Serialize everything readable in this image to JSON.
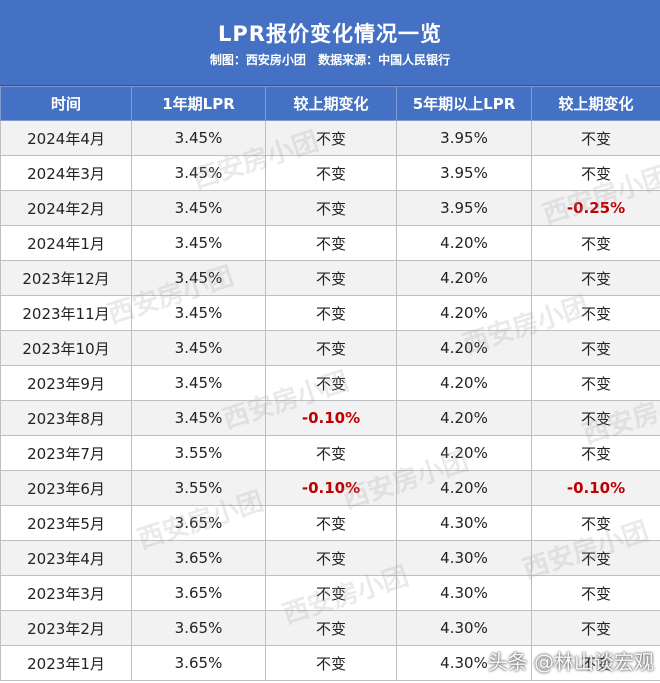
{
  "header": {
    "title": "LPR报价变化情况一览",
    "subtitle_left": "制图：西安房小团",
    "subtitle_right": "数据来源：中国人民银行"
  },
  "table": {
    "columns": [
      "时间",
      "1年期LPR",
      "较上期变化",
      "5年期以上LPR",
      "较上期变化"
    ],
    "rows": [
      [
        "2024年4月",
        "3.45%",
        "不变",
        "3.95%",
        "不变"
      ],
      [
        "2024年3月",
        "3.45%",
        "不变",
        "3.95%",
        "不变"
      ],
      [
        "2024年2月",
        "3.45%",
        "不变",
        "3.95%",
        "-0.25%"
      ],
      [
        "2024年1月",
        "3.45%",
        "不变",
        "4.20%",
        "不变"
      ],
      [
        "2023年12月",
        "3.45%",
        "不变",
        "4.20%",
        "不变"
      ],
      [
        "2023年11月",
        "3.45%",
        "不变",
        "4.20%",
        "不变"
      ],
      [
        "2023年10月",
        "3.45%",
        "不变",
        "4.20%",
        "不变"
      ],
      [
        "2023年9月",
        "3.45%",
        "不变",
        "4.20%",
        "不变"
      ],
      [
        "2023年8月",
        "3.45%",
        "-0.10%",
        "4.20%",
        "不变"
      ],
      [
        "2023年7月",
        "3.55%",
        "不变",
        "4.20%",
        "不变"
      ],
      [
        "2023年6月",
        "3.55%",
        "-0.10%",
        "4.20%",
        "-0.10%"
      ],
      [
        "2023年5月",
        "3.65%",
        "不变",
        "4.30%",
        "不变"
      ],
      [
        "2023年4月",
        "3.65%",
        "不变",
        "4.30%",
        "不变"
      ],
      [
        "2023年3月",
        "3.65%",
        "不变",
        "4.30%",
        "不变"
      ],
      [
        "2023年2月",
        "3.65%",
        "不变",
        "4.30%",
        "不变"
      ],
      [
        "2023年1月",
        "3.65%",
        "不变",
        "4.30%",
        "不变"
      ]
    ]
  },
  "watermark": "西安房小团",
  "credit": "头条 @林山谈宏观",
  "colors": {
    "header_bg": "#4471c4",
    "negative": "#c00000",
    "row_alt": "#f2f2f2"
  }
}
